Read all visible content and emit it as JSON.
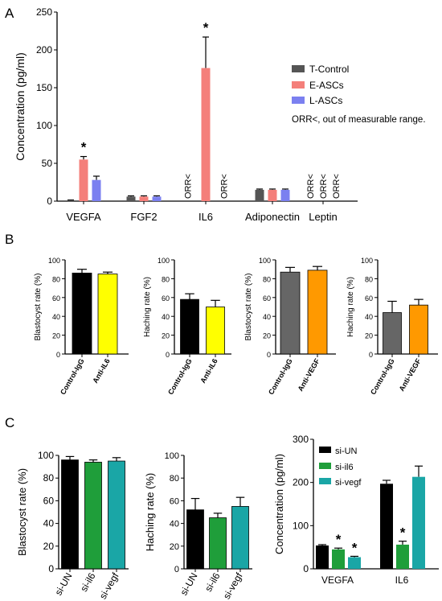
{
  "panels": {
    "A": "A",
    "B": "B",
    "C": "C"
  },
  "colors": {
    "t_control": "#555555",
    "e_ascs": "#f47f7a",
    "l_ascs": "#7b80f0",
    "black": "#000000",
    "yellow": "#ffff00",
    "gray": "#666666",
    "orange": "#ff9900",
    "green": "#1f9e3a",
    "teal": "#1aa6a6"
  },
  "chart_data": [
    {
      "id": "A",
      "type": "bar",
      "ylabel": "Concentration (pg/ml)",
      "ylim": [
        0,
        250
      ],
      "yticks": [
        0,
        50,
        100,
        150,
        200,
        250
      ],
      "categories": [
        "VEGFA",
        "FGF2",
        "IL6",
        "Adiponectin",
        "Leptin"
      ],
      "series": [
        {
          "name": "T-Control",
          "color": "#555555",
          "values": [
            1,
            6,
            null,
            15,
            null
          ],
          "errors": [
            0.5,
            1,
            0,
            1,
            0
          ]
        },
        {
          "name": "E-ASCs",
          "color": "#f47f7a",
          "values": [
            55,
            6,
            176,
            15,
            null
          ],
          "errors": [
            4,
            1,
            41,
            1,
            0
          ]
        },
        {
          "name": "L-ASCs",
          "color": "#7b80f0",
          "values": [
            28,
            6,
            null,
            15,
            null
          ],
          "errors": [
            5,
            1,
            0,
            1,
            0
          ]
        }
      ],
      "significance": [
        {
          "category": "VEGFA",
          "series": "E-ASCs",
          "label": "*"
        },
        {
          "category": "IL6",
          "series": "E-ASCs",
          "label": "*"
        }
      ],
      "orr_marks": [
        {
          "category": "IL6",
          "series": "T-Control",
          "label": "ORR<"
        },
        {
          "category": "IL6",
          "series": "L-ASCs",
          "label": "ORR<"
        },
        {
          "category": "Leptin",
          "series": "T-Control",
          "label": "ORR<"
        },
        {
          "category": "Leptin",
          "series": "E-ASCs",
          "label": "ORR<"
        },
        {
          "category": "Leptin",
          "series": "L-ASCs",
          "label": "ORR<"
        }
      ],
      "note": "ORR<, out of measurable range.",
      "legend_position": "right"
    },
    {
      "id": "B1",
      "type": "bar",
      "ylabel": "Blastocyst rate (%)",
      "ylim": [
        0,
        100
      ],
      "yticks": [
        0,
        20,
        40,
        60,
        80,
        100
      ],
      "categories": [
        "Control-IgG",
        "Anti-IL6"
      ],
      "values": [
        86,
        85
      ],
      "errors": [
        4,
        2
      ],
      "colors": [
        "#000000",
        "#ffff00"
      ]
    },
    {
      "id": "B2",
      "type": "bar",
      "ylabel": "Haching rate (%)",
      "ylim": [
        0,
        100
      ],
      "yticks": [
        0,
        20,
        40,
        60,
        80,
        100
      ],
      "categories": [
        "Control-IgG",
        "Anti-IL6"
      ],
      "values": [
        58,
        50
      ],
      "errors": [
        6,
        7
      ],
      "colors": [
        "#000000",
        "#ffff00"
      ]
    },
    {
      "id": "B3",
      "type": "bar",
      "ylabel": "Blastocyst rate (%)",
      "ylim": [
        0,
        100
      ],
      "yticks": [
        0,
        20,
        40,
        60,
        80,
        100
      ],
      "categories": [
        "Control-IgG",
        "Anti-VEGF"
      ],
      "values": [
        87,
        89
      ],
      "errors": [
        5,
        4
      ],
      "colors": [
        "#666666",
        "#ff9900"
      ]
    },
    {
      "id": "B4",
      "type": "bar",
      "ylabel": "Haching rate (%)",
      "ylim": [
        0,
        100
      ],
      "yticks": [
        0,
        20,
        40,
        60,
        80,
        100
      ],
      "categories": [
        "Control-IgG",
        "Anti-VEGF"
      ],
      "values": [
        44,
        52
      ],
      "errors": [
        12,
        6
      ],
      "colors": [
        "#666666",
        "#ff9900"
      ]
    },
    {
      "id": "C1",
      "type": "bar",
      "ylabel": "Blastocyst rate (%)",
      "ylim": [
        0,
        100
      ],
      "yticks": [
        0,
        20,
        40,
        60,
        80,
        100
      ],
      "categories": [
        "si-UN",
        "si-il6",
        "si-vegf"
      ],
      "values": [
        96,
        94,
        95
      ],
      "errors": [
        3,
        2,
        3
      ],
      "colors": [
        "#000000",
        "#1f9e3a",
        "#1aa6a6"
      ]
    },
    {
      "id": "C2",
      "type": "bar",
      "ylabel": "Haching rate (%)",
      "ylim": [
        0,
        100
      ],
      "yticks": [
        0,
        20,
        40,
        60,
        80,
        100
      ],
      "categories": [
        "si-UN",
        "si-il6",
        "si-vegf"
      ],
      "values": [
        52,
        45,
        55
      ],
      "errors": [
        10,
        4,
        8
      ],
      "colors": [
        "#000000",
        "#1f9e3a",
        "#1aa6a6"
      ]
    },
    {
      "id": "C3",
      "type": "bar",
      "ylabel": "Concentration (pg/ml)",
      "ylim": [
        0,
        300
      ],
      "yticks": [
        0,
        100,
        200,
        300
      ],
      "categories": [
        "VEGFA",
        "IL6"
      ],
      "series": [
        {
          "name": "si-UN",
          "color": "#000000",
          "values": [
            54,
            197
          ],
          "errors": [
            2,
            8
          ]
        },
        {
          "name": "si-il6",
          "color": "#1f9e3a",
          "values": [
            45,
            56
          ],
          "errors": [
            3,
            8
          ]
        },
        {
          "name": "si-vegf",
          "color": "#1aa6a6",
          "values": [
            27,
            213
          ],
          "errors": [
            2,
            25
          ]
        }
      ],
      "significance": [
        {
          "category": "VEGFA",
          "series": "si-il6",
          "label": "*"
        },
        {
          "category": "VEGFA",
          "series": "si-vegf",
          "label": "*"
        },
        {
          "category": "IL6",
          "series": "si-il6",
          "label": "*"
        }
      ],
      "legend_position": "top-left"
    }
  ]
}
